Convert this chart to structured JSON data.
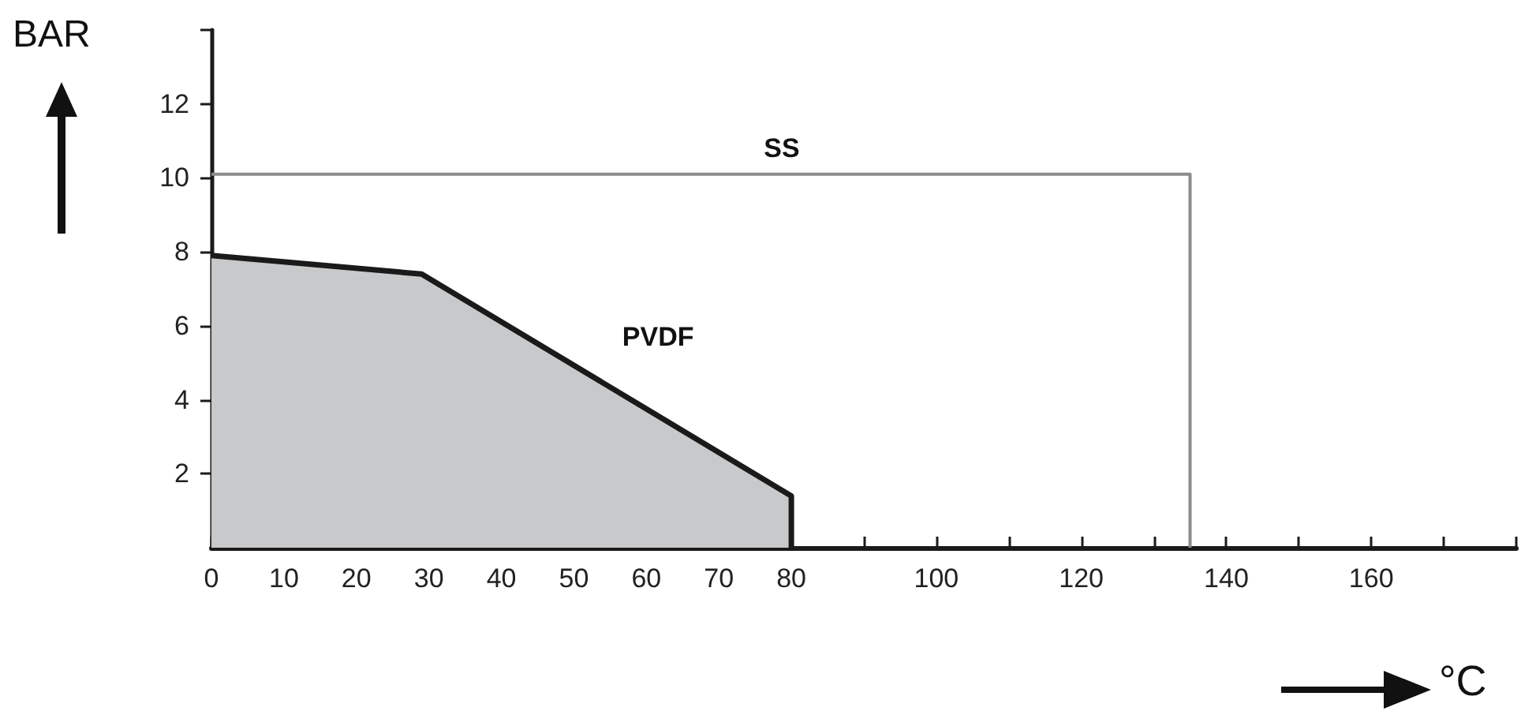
{
  "chart_data": {
    "type": "area",
    "xlabel": "°C",
    "ylabel": "BAR",
    "xlim": [
      0,
      180
    ],
    "ylim": [
      0,
      14
    ],
    "xticks": [
      0,
      10,
      20,
      30,
      40,
      50,
      60,
      70,
      80,
      {
        "value": 90,
        "label": null
      },
      100,
      {
        "value": 110,
        "label": null
      },
      120,
      {
        "value": 130,
        "label": null
      },
      140,
      {
        "value": 150,
        "label": null
      },
      160,
      {
        "value": 170,
        "label": null
      },
      {
        "value": 180,
        "label": null
      }
    ],
    "yticks": [
      2,
      4,
      6,
      8,
      10,
      12,
      {
        "value": 14,
        "label": null
      }
    ],
    "series": [
      {
        "name": "SS",
        "type": "line",
        "color": "#8c8c8c",
        "x": [
          0,
          135,
          135
        ],
        "values": [
          10.1,
          10.1,
          0
        ]
      },
      {
        "name": "PVDF",
        "type": "area",
        "color": "#c8c9cb",
        "x": [
          0,
          29,
          80,
          80
        ],
        "values": [
          7.9,
          7.4,
          1.4,
          0
        ]
      }
    ],
    "grid": false,
    "legend": false,
    "marker": "none",
    "line_style": "solid"
  }
}
